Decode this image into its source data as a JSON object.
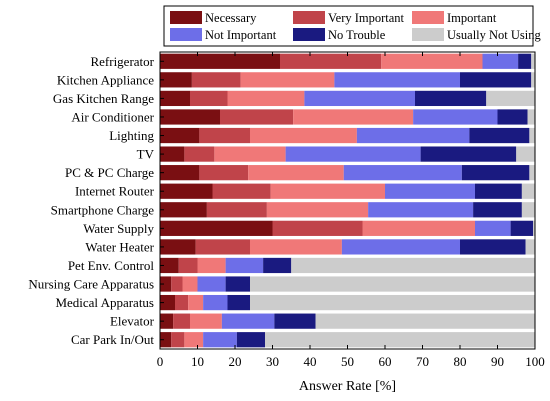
{
  "chart_data": {
    "type": "bar",
    "orientation": "horizontal",
    "stacked": true,
    "title": "",
    "xlabel": "Answer Rate [%]",
    "ylabel": "",
    "xlim": [
      0,
      100
    ],
    "xticks": [
      0,
      10,
      20,
      30,
      40,
      50,
      60,
      70,
      80,
      90,
      100
    ],
    "grid": false,
    "legend_position": "top",
    "categories": [
      "Refrigerator",
      "Kitchen Appliance",
      "Gas Kitchen Range",
      "Air Conditioner",
      "Lighting",
      "TV",
      "PC & PC Charge",
      "Internet Router",
      "Smartphone Charge",
      "Water Supply",
      "Water Heater",
      "Pet Env. Control",
      "Nursing Care Apparatus",
      "Medical Apparatus",
      "Elevator",
      "Car Park In/Out"
    ],
    "series": [
      {
        "name": "Necessary",
        "color": "#7a0f12",
        "values": [
          32,
          8.5,
          8,
          16,
          10.5,
          6.5,
          10.5,
          14,
          12.5,
          30,
          9.5,
          5,
          3,
          4,
          3.5,
          3
        ]
      },
      {
        "name": "Very Important",
        "color": "#c0444a",
        "values": [
          27,
          13,
          10,
          19.5,
          13.5,
          8,
          13,
          15.5,
          16,
          24,
          14.5,
          5,
          3,
          3.5,
          4.5,
          3.5
        ]
      },
      {
        "name": "Important",
        "color": "#f07878",
        "values": [
          27,
          25,
          20.5,
          32,
          28.5,
          19,
          25.5,
          30.5,
          27,
          30,
          24.5,
          7.5,
          4,
          4,
          8.5,
          5
        ]
      },
      {
        "name": "Not Important",
        "color": "#6d6ee8",
        "values": [
          9.5,
          33.5,
          29.5,
          22.5,
          30,
          36,
          31.5,
          24,
          28,
          9.5,
          31.5,
          10,
          7.5,
          6.5,
          14,
          9
        ]
      },
      {
        "name": "No Trouble",
        "color": "#1a1a80",
        "values": [
          3.5,
          19,
          19,
          8,
          16,
          25.5,
          18,
          12.5,
          13,
          6,
          17.5,
          7.5,
          6.5,
          6,
          11,
          7.5
        ]
      },
      {
        "name": "Usually Not Using",
        "color": "#cccccc",
        "values": [
          1,
          1,
          13,
          2,
          1.5,
          5,
          1.5,
          3.5,
          3.5,
          0.5,
          2.5,
          65,
          76,
          76,
          58.5,
          72
        ]
      }
    ]
  }
}
